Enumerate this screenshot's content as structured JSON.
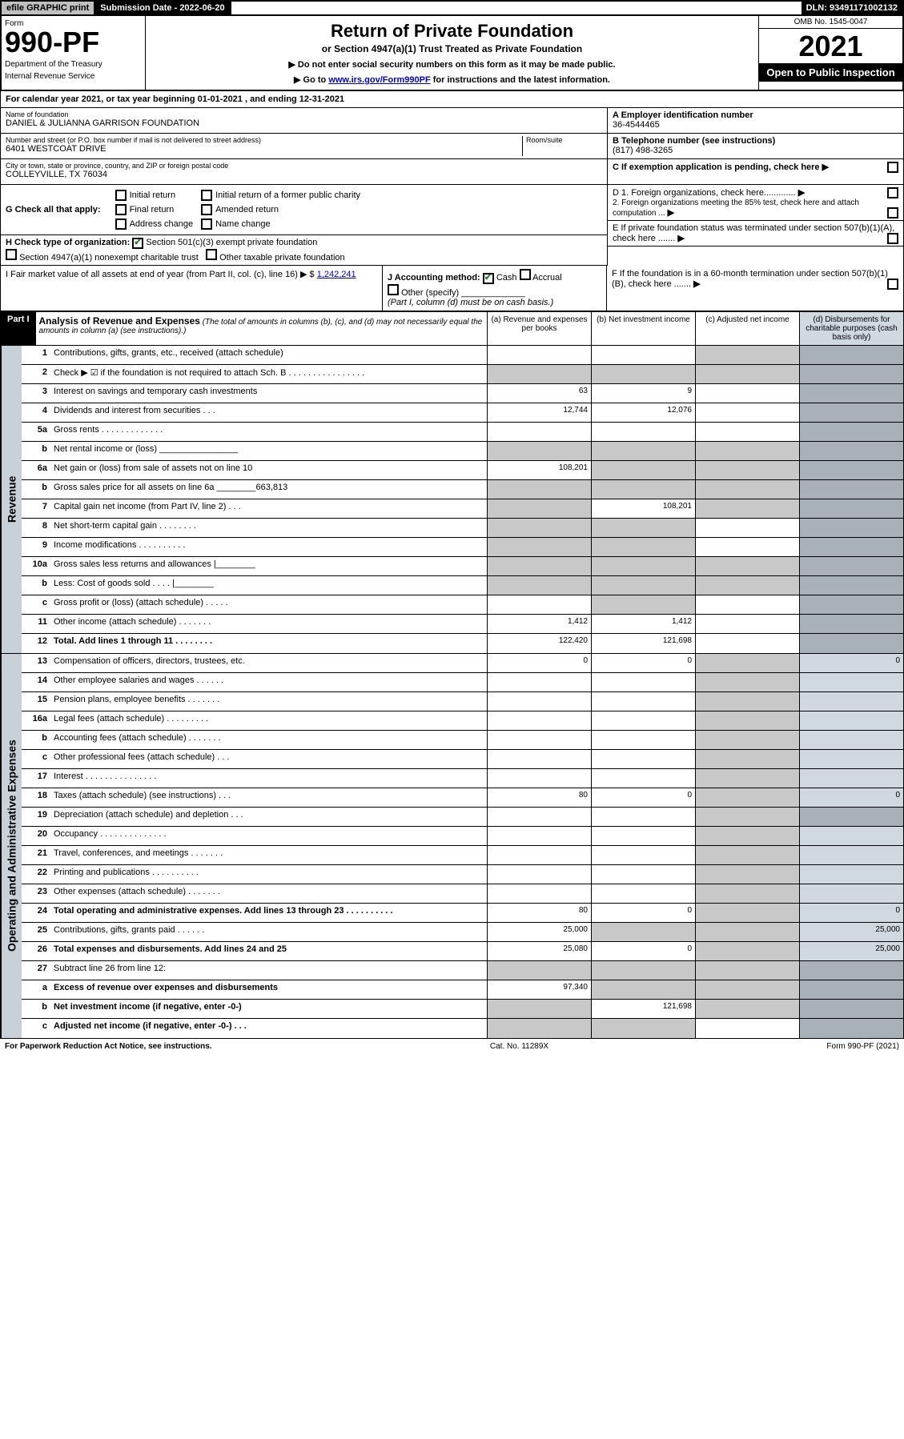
{
  "top": {
    "efile": "efile GRAPHIC print",
    "submission_label": "Submission Date - 2022-06-20",
    "dln": "DLN: 93491171002132"
  },
  "header": {
    "form_label": "Form",
    "form_number": "990-PF",
    "dept": "Department of the Treasury",
    "irs": "Internal Revenue Service",
    "title": "Return of Private Foundation",
    "subtitle": "or Section 4947(a)(1) Trust Treated as Private Foundation",
    "note1": "▶ Do not enter social security numbers on this form as it may be made public.",
    "note2_pre": "▶ Go to ",
    "note2_link": "www.irs.gov/Form990PF",
    "note2_post": " for instructions and the latest information.",
    "omb": "OMB No. 1545-0047",
    "year": "2021",
    "inspection": "Open to Public Inspection"
  },
  "calyear": "For calendar year 2021, or tax year beginning 01-01-2021                          , and ending 12-31-2021",
  "name_block": {
    "label": "Name of foundation",
    "value": "DANIEL & JULIANNA GARRISON FOUNDATION"
  },
  "addr_block": {
    "label": "Number and street (or P.O. box number if mail is not delivered to street address)",
    "room": "Room/suite",
    "value": "6401 WESTCOAT DRIVE"
  },
  "city_block": {
    "label": "City or town, state or province, country, and ZIP or foreign postal code",
    "value": "COLLEYVILLE, TX  76034"
  },
  "right_info": {
    "a_label": "A Employer identification number",
    "a_value": "36-4544465",
    "b_label": "B Telephone number (see instructions)",
    "b_value": "(817) 498-3265",
    "c_label": "C If exemption application is pending, check here",
    "d1": "D 1. Foreign organizations, check here.............",
    "d2": "2. Foreign organizations meeting the 85% test, check here and attach computation ...",
    "e": "E  If private foundation status was terminated under section 507(b)(1)(A), check here .......",
    "f": "F  If the foundation is in a 60-month termination under section 507(b)(1)(B), check here .......",
    "arrow": "▶"
  },
  "g": {
    "label": "G Check all that apply:",
    "initial": "Initial return",
    "initial_former": "Initial return of a former public charity",
    "final": "Final return",
    "amended": "Amended return",
    "address": "Address change",
    "name": "Name change"
  },
  "h": {
    "label": "H Check type of organization:",
    "c3": "Section 501(c)(3) exempt private foundation",
    "trust": "Section 4947(a)(1) nonexempt charitable trust",
    "other": "Other taxable private foundation"
  },
  "i": {
    "label": "I Fair market value of all assets at end of year (from Part II, col. (c), line 16) ▶ $",
    "value": "1,242,241"
  },
  "j": {
    "label": "J Accounting method:",
    "cash": "Cash",
    "accrual": "Accrual",
    "other": "Other (specify)",
    "note": "(Part I, column (d) must be on cash basis.)"
  },
  "part1": {
    "tag": "Part I",
    "title": "Analysis of Revenue and Expenses",
    "title_note": "(The total of amounts in columns (b), (c), and (d) may not necessarily equal the amounts in column (a) (see instructions).)",
    "col_a": "(a) Revenue and expenses per books",
    "col_b": "(b) Net investment income",
    "col_c": "(c) Adjusted net income",
    "col_d": "(d) Disbursements for charitable purposes (cash basis only)"
  },
  "side_labels": {
    "revenue": "Revenue",
    "expenses": "Operating and Administrative Expenses"
  },
  "rows": [
    {
      "n": "1",
      "t": "Contributions, gifts, grants, etc., received (attach schedule)",
      "a": "",
      "b": "",
      "c": "shade",
      "d": "shade"
    },
    {
      "n": "2",
      "t": "Check ▶ ☑ if the foundation is not required to attach Sch. B     .  .  .  .  .  .  .  .  .  .  .  .  .  .  .  .",
      "a": "shade",
      "b": "shade",
      "c": "shade",
      "d": "shade"
    },
    {
      "n": "3",
      "t": "Interest on savings and temporary cash investments",
      "a": "63",
      "b": "9",
      "c": "",
      "d": "shade"
    },
    {
      "n": "4",
      "t": "Dividends and interest from securities    .    .    .",
      "a": "12,744",
      "b": "12,076",
      "c": "",
      "d": "shade"
    },
    {
      "n": "5a",
      "t": "Gross rents     .   .   .   .   .   .   .   .   .   .   .   .   .",
      "a": "",
      "b": "",
      "c": "",
      "d": "shade"
    },
    {
      "n": "b",
      "t": "Net rental income or (loss) ________________",
      "a": "shade",
      "b": "shade",
      "c": "shade",
      "d": "shade"
    },
    {
      "n": "6a",
      "t": "Net gain or (loss) from sale of assets not on line 10",
      "a": "108,201",
      "b": "shade",
      "c": "shade",
      "d": "shade"
    },
    {
      "n": "b",
      "t": "Gross sales price for all assets on line 6a ________663,813",
      "a": "shade",
      "b": "shade",
      "c": "shade",
      "d": "shade"
    },
    {
      "n": "7",
      "t": "Capital gain net income (from Part IV, line 2)    .    .    .",
      "a": "shade",
      "b": "108,201",
      "c": "shade",
      "d": "shade"
    },
    {
      "n": "8",
      "t": "Net short-term capital gain   .   .   .   .   .   .   .   .",
      "a": "shade",
      "b": "shade",
      "c": "",
      "d": "shade"
    },
    {
      "n": "9",
      "t": "Income modifications  .   .   .   .   .   .   .   .   .   .",
      "a": "shade",
      "b": "shade",
      "c": "",
      "d": "shade"
    },
    {
      "n": "10a",
      "t": "Gross sales less returns and allowances  |________",
      "a": "shade",
      "b": "shade",
      "c": "shade",
      "d": "shade"
    },
    {
      "n": "b",
      "t": "Less: Cost of goods sold     .   .   .   .   |________",
      "a": "shade",
      "b": "shade",
      "c": "shade",
      "d": "shade"
    },
    {
      "n": "c",
      "t": "Gross profit or (loss) (attach schedule)     .   .   .   .   .",
      "a": "",
      "b": "shade",
      "c": "",
      "d": "shade"
    },
    {
      "n": "11",
      "t": "Other income (attach schedule)    .   .   .   .   .   .   .",
      "a": "1,412",
      "b": "1,412",
      "c": "",
      "d": "shade"
    },
    {
      "n": "12",
      "t": "Total. Add lines 1 through 11   .   .   .   .   .   .   .   .",
      "bold": true,
      "a": "122,420",
      "b": "121,698",
      "c": "",
      "d": "shade"
    }
  ],
  "exp_rows": [
    {
      "n": "13",
      "t": "Compensation of officers, directors, trustees, etc.",
      "a": "0",
      "b": "0",
      "c": "shade",
      "d": "0"
    },
    {
      "n": "14",
      "t": "Other employee salaries and wages    .   .   .   .   .   .",
      "a": "",
      "b": "",
      "c": "shade",
      "d": ""
    },
    {
      "n": "15",
      "t": "Pension plans, employee benefits   .   .   .   .   .   .   .",
      "a": "",
      "b": "",
      "c": "shade",
      "d": ""
    },
    {
      "n": "16a",
      "t": "Legal fees (attach schedule)  .   .   .   .   .   .   .   .   .",
      "a": "",
      "b": "",
      "c": "shade",
      "d": ""
    },
    {
      "n": "b",
      "t": "Accounting fees (attach schedule)  .   .   .   .   .   .   .",
      "a": "",
      "b": "",
      "c": "shade",
      "d": ""
    },
    {
      "n": "c",
      "t": "Other professional fees (attach schedule)     .   .   .",
      "a": "",
      "b": "",
      "c": "shade",
      "d": ""
    },
    {
      "n": "17",
      "t": "Interest  .   .   .   .   .   .   .   .   .   .   .   .   .   .   .",
      "a": "",
      "b": "",
      "c": "shade",
      "d": ""
    },
    {
      "n": "18",
      "t": "Taxes (attach schedule) (see instructions)      .    .    .",
      "a": "80",
      "b": "0",
      "c": "shade",
      "d": "0"
    },
    {
      "n": "19",
      "t": "Depreciation (attach schedule) and depletion    .    .    .",
      "a": "",
      "b": "",
      "c": "shade",
      "d": "shade"
    },
    {
      "n": "20",
      "t": "Occupancy  .   .   .   .   .   .   .   .   .   .   .   .   .   .",
      "a": "",
      "b": "",
      "c": "shade",
      "d": ""
    },
    {
      "n": "21",
      "t": "Travel, conferences, and meetings  .   .   .   .   .   .   .",
      "a": "",
      "b": "",
      "c": "shade",
      "d": ""
    },
    {
      "n": "22",
      "t": "Printing and publications  .   .   .   .   .   .   .   .   .   .",
      "a": "",
      "b": "",
      "c": "shade",
      "d": ""
    },
    {
      "n": "23",
      "t": "Other expenses (attach schedule)  .   .   .   .   .   .   .",
      "a": "",
      "b": "",
      "c": "shade",
      "d": ""
    },
    {
      "n": "24",
      "t": "Total operating and administrative expenses. Add lines 13 through 23   .   .   .   .   .   .   .   .   .   .",
      "bold": true,
      "a": "80",
      "b": "0",
      "c": "shade",
      "d": "0"
    },
    {
      "n": "25",
      "t": "Contributions, gifts, grants paid      .   .   .   .   .   .",
      "a": "25,000",
      "b": "shade",
      "c": "shade",
      "d": "25,000"
    },
    {
      "n": "26",
      "t": "Total expenses and disbursements. Add lines 24 and 25",
      "bold": true,
      "a": "25,080",
      "b": "0",
      "c": "shade",
      "d": "25,000"
    },
    {
      "n": "27",
      "t": "Subtract line 26 from line 12:",
      "a": "shade",
      "b": "shade",
      "c": "shade",
      "d": "shade"
    },
    {
      "n": "a",
      "t": "Excess of revenue over expenses and disbursements",
      "bold": true,
      "a": "97,340",
      "b": "shade",
      "c": "shade",
      "d": "shade"
    },
    {
      "n": "b",
      "t": "Net investment income (if negative, enter -0-)",
      "bold": true,
      "a": "shade",
      "b": "121,698",
      "c": "shade",
      "d": "shade"
    },
    {
      "n": "c",
      "t": "Adjusted net income (if negative, enter -0-)    .    .    .",
      "bold": true,
      "a": "shade",
      "b": "shade",
      "c": "",
      "d": "shade"
    }
  ],
  "footer": {
    "left": "For Paperwork Reduction Act Notice, see instructions.",
    "mid": "Cat. No. 11289X",
    "right": "Form 990-PF (2021)"
  }
}
